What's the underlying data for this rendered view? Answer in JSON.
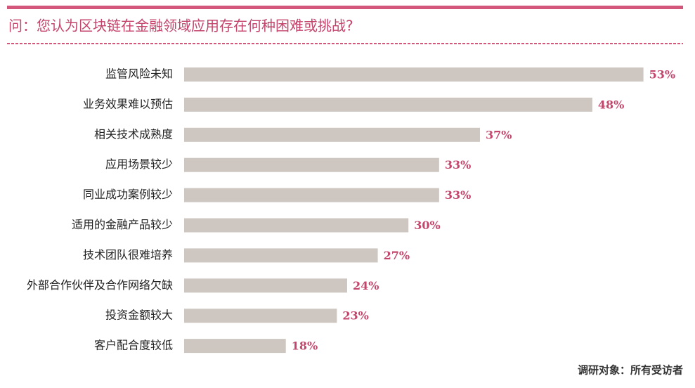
{
  "chart_data": {
    "type": "bar",
    "orientation": "horizontal",
    "title": "问：您认为区块链在金融领域应用存在何种困难或挑战?",
    "categories": [
      "监管风险未知",
      "业务效果难以预估",
      "相关技术成熟度",
      "应用场景较少",
      "同业成功案例较少",
      "适用的金融产品较少",
      "技术团队很难培养",
      "外部合作伙伴及合作网络欠缺",
      "投资金额较大",
      "客户配合度较低"
    ],
    "values": [
      53,
      48,
      37,
      33,
      33,
      30,
      27,
      24,
      23,
      18
    ],
    "value_labels": [
      "53%",
      "48%",
      "37%",
      "33%",
      "33%",
      "30%",
      "27%",
      "24%",
      "23%",
      "18%"
    ],
    "color": "#cdc6c1",
    "label_color": "#c4456c",
    "note": "调研对象：所有受访者"
  }
}
